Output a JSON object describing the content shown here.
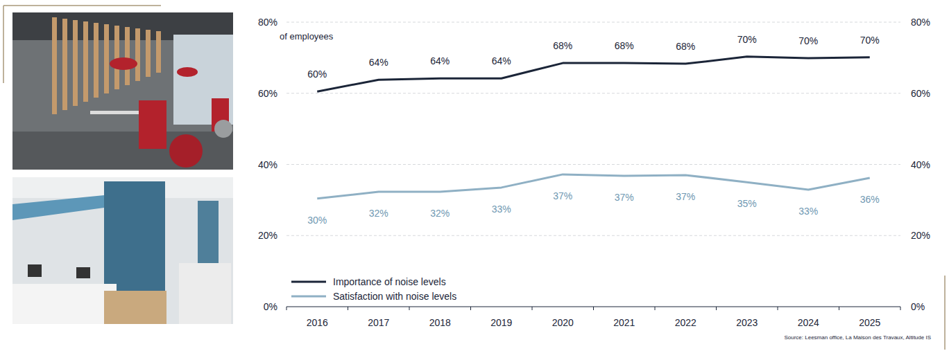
{
  "chart_data": {
    "type": "line",
    "ylabel": "of employees",
    "source": "Source: Leesman office, La Maison des Travaux, Altitude IS",
    "categories": [
      "2016",
      "2017",
      "2018",
      "2019",
      "2020",
      "2021",
      "2022",
      "2023",
      "2024",
      "2025"
    ],
    "series": [
      {
        "name": "Importance of noise levels",
        "color": "#1b2538",
        "values": [
          60.5,
          63.8,
          64.2,
          64.2,
          68.5,
          68.5,
          68.3,
          70.3,
          69.9,
          70.1
        ],
        "value_labels": [
          "60%",
          "64%",
          "64%",
          "64%",
          "68%",
          "68%",
          "68%",
          "70%",
          "70%",
          "70%"
        ]
      },
      {
        "name": "Satisfaction with noise levels",
        "color": "#8fb0c4",
        "values": [
          30.4,
          32.3,
          32.3,
          33.5,
          37.2,
          36.8,
          37.0,
          35.0,
          32.9,
          36.2
        ],
        "value_labels": [
          "30%",
          "32%",
          "32%",
          "33%",
          "37%",
          "37%",
          "37%",
          "35%",
          "33%",
          "36%"
        ]
      }
    ],
    "ylim": [
      0,
      80
    ],
    "yticks": [
      {
        "value": 0,
        "label": "0%"
      },
      {
        "value": 20,
        "label": "20%"
      },
      {
        "value": 40,
        "label": "40%"
      },
      {
        "value": 60,
        "label": "60%"
      },
      {
        "value": 80,
        "label": "80%"
      }
    ],
    "y2lim": [
      0,
      80
    ],
    "y2ticks": [
      {
        "value": 0,
        "label": "0%"
      },
      {
        "value": 20,
        "label": "20%"
      },
      {
        "value": 40,
        "label": "40%"
      },
      {
        "value": 60,
        "label": "60%"
      },
      {
        "value": 80,
        "label": "80%"
      }
    ],
    "grid": true,
    "legend": "lower left",
    "data_labels": true
  }
}
